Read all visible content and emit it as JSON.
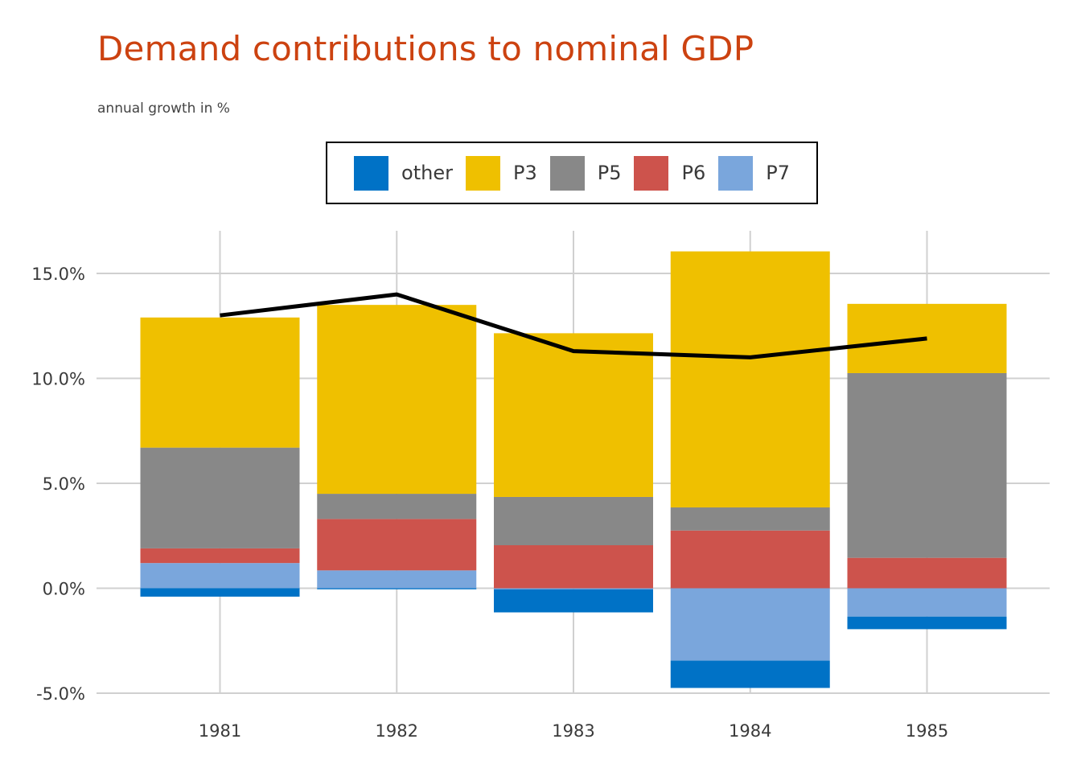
{
  "chart_data": {
    "type": "bar",
    "stacked": true,
    "title": "Demand contributions to nominal GDP",
    "subtitle": "annual growth in %",
    "xlabel": "",
    "ylabel": "",
    "categories": [
      "1981",
      "1982",
      "1983",
      "1984",
      "1985"
    ],
    "ylim": [
      -5.5,
      17
    ],
    "yticks": [
      -5,
      0,
      5,
      10,
      15
    ],
    "ytick_labels": [
      "-5.0%",
      "0.0%",
      "5.0%",
      "10.0%",
      "15.0%"
    ],
    "grid": true,
    "legend_position": "top",
    "series": [
      {
        "name": "other",
        "color": "#0072c6",
        "values": [
          -0.4,
          -0.05,
          -1.1,
          -1.3,
          -0.6
        ]
      },
      {
        "name": "P3",
        "color": "#efc000",
        "values": [
          6.2,
          9.0,
          7.8,
          12.2,
          3.3
        ]
      },
      {
        "name": "P5",
        "color": "#888888",
        "values": [
          4.8,
          1.2,
          2.3,
          1.1,
          8.8
        ]
      },
      {
        "name": "P6",
        "color": "#cd534c",
        "values": [
          0.7,
          2.45,
          2.05,
          2.75,
          1.45
        ]
      },
      {
        "name": "P7",
        "color": "#7aa6dc",
        "values": [
          1.2,
          0.85,
          -0.05,
          -3.45,
          -1.35
        ]
      }
    ],
    "line": {
      "color": "#000000",
      "values": [
        13.0,
        14.0,
        11.3,
        11.0,
        11.9
      ]
    }
  }
}
